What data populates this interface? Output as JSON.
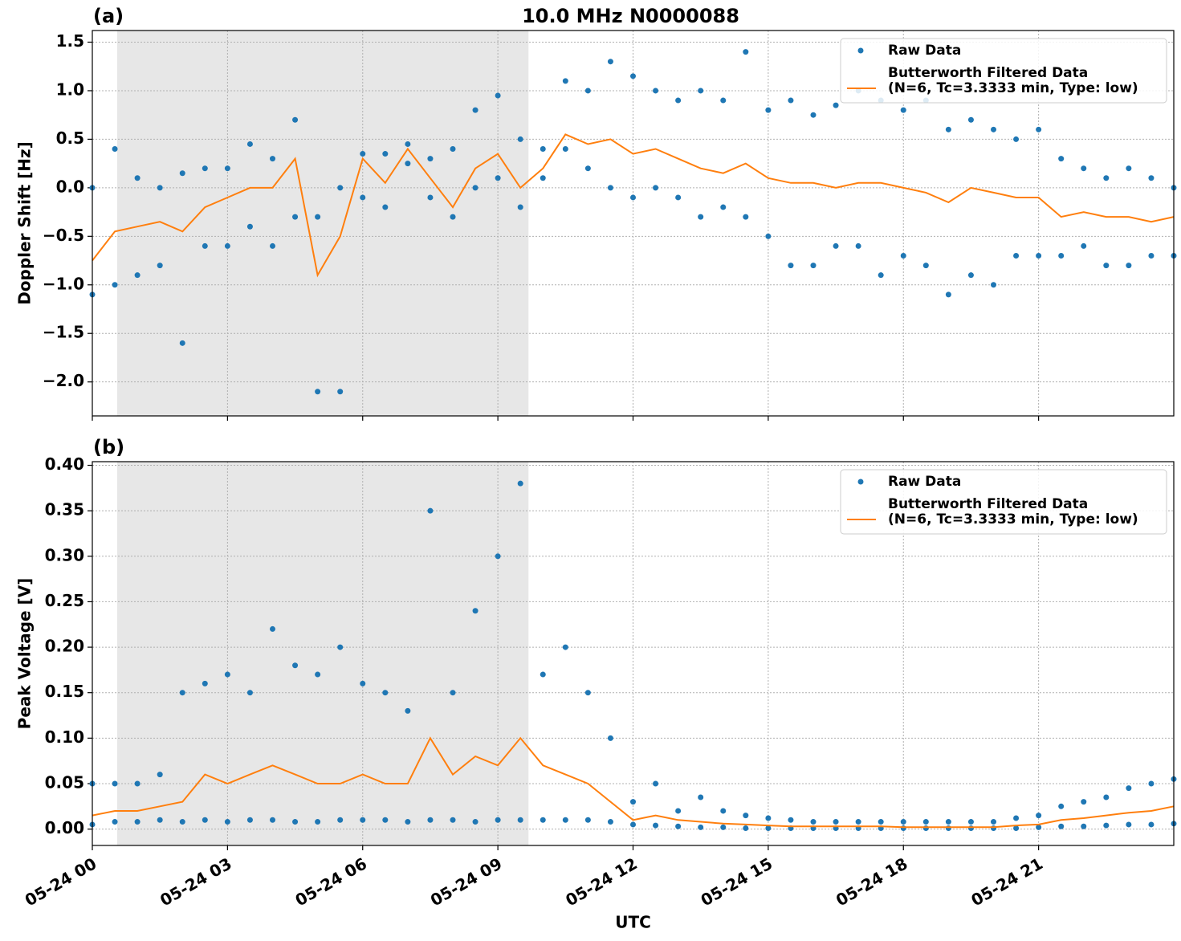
{
  "chart_data": [
    {
      "type": "scatter-line",
      "title": "10.0 MHz N0000088",
      "panel_label": "(a)",
      "ylabel": "Doppler Shift [Hz]",
      "xlim": [
        0,
        24
      ],
      "xticks": [
        0,
        3,
        6,
        9,
        12,
        15,
        18,
        21
      ],
      "ylim": [
        -2.35,
        1.62
      ],
      "yticks": [
        {
          "value": -2.0,
          "label": "−2.0"
        },
        {
          "value": -1.5,
          "label": "−1.5"
        },
        {
          "value": -1.0,
          "label": "−1.0"
        },
        {
          "value": -0.5,
          "label": "−0.5"
        },
        {
          "value": 0.0,
          "label": "0.0"
        },
        {
          "value": 0.5,
          "label": "0.5"
        },
        {
          "value": 1.0,
          "label": "1.0"
        },
        {
          "value": 1.5,
          "label": "1.5"
        }
      ],
      "grid": true,
      "shade": [
        0.55,
        9.68
      ],
      "legend": "upper right",
      "series": [
        {
          "name": "Raw Data",
          "color": "#1f77b4",
          "style": "points",
          "x": [
            0,
            0.5,
            1,
            1.5,
            2,
            2.5,
            3,
            3.5,
            4,
            4.5,
            5,
            5.5,
            6,
            6.5,
            7,
            7.5,
            8,
            8.5,
            9,
            9.5,
            10,
            10.5,
            11,
            11.5,
            12,
            12.5,
            13,
            13.5,
            14,
            14.5,
            15,
            15.5,
            16,
            16.5,
            17,
            17.5,
            18,
            18.5,
            19,
            19.5,
            20,
            20.5,
            21,
            21.5,
            22,
            22.5,
            23,
            23.5,
            24,
            0,
            0.5,
            1,
            1.5,
            2,
            2.5,
            3,
            3.5,
            4,
            4.5,
            5,
            5.5,
            6,
            6.5,
            7,
            7.5,
            8,
            8.5,
            9,
            9.5,
            10,
            10.5,
            11,
            11.5,
            12,
            12.5,
            13,
            13.5,
            14,
            14.5,
            15,
            15.5,
            16,
            16.5,
            17,
            17.5,
            18,
            18.5,
            19,
            19.5,
            20,
            20.5,
            21,
            21.5,
            22,
            22.5,
            23,
            23.5,
            24
          ],
          "values": [
            0.0,
            0.4,
            0.1,
            0.0,
            0.15,
            0.2,
            0.2,
            0.45,
            0.3,
            0.7,
            -0.3,
            0.0,
            0.35,
            0.35,
            0.45,
            0.3,
            0.4,
            0.8,
            0.95,
            0.5,
            0.4,
            1.1,
            1.0,
            1.3,
            1.15,
            1.0,
            0.9,
            1.0,
            0.9,
            1.4,
            0.8,
            0.9,
            0.75,
            0.85,
            1.0,
            0.9,
            0.8,
            0.9,
            0.6,
            0.7,
            0.6,
            0.5,
            0.6,
            0.3,
            0.2,
            0.1,
            0.2,
            0.1,
            0.0,
            -1.1,
            -1.0,
            -0.9,
            -0.8,
            -1.6,
            -0.6,
            -0.6,
            -0.4,
            -0.6,
            -0.3,
            -2.1,
            -2.1,
            -0.1,
            -0.2,
            0.25,
            -0.1,
            -0.3,
            0.0,
            0.1,
            -0.2,
            0.1,
            0.4,
            0.2,
            0.0,
            -0.1,
            0.0,
            -0.1,
            -0.3,
            -0.2,
            -0.3,
            -0.5,
            -0.8,
            -0.8,
            -0.6,
            -0.6,
            -0.9,
            -0.7,
            -0.8,
            -1.1,
            -0.9,
            -1.0,
            -0.7,
            -0.7,
            -0.7,
            -0.6,
            -0.8,
            -0.8,
            -0.7,
            -0.7
          ]
        },
        {
          "name": "Butterworth Filtered Data\n(N=6, Tc=3.3333 min, Type: low)",
          "color": "#ff7f0e",
          "style": "line",
          "x": [
            0,
            0.5,
            1,
            1.5,
            2,
            2.5,
            3,
            3.5,
            4,
            4.5,
            5,
            5.5,
            6,
            6.5,
            7,
            7.5,
            8,
            8.5,
            9,
            9.5,
            10,
            10.5,
            11,
            11.5,
            12,
            12.5,
            13,
            13.5,
            14,
            14.5,
            15,
            15.5,
            16,
            16.5,
            17,
            17.5,
            18,
            18.5,
            19,
            19.5,
            20,
            20.5,
            21,
            21.5,
            22,
            22.5,
            23,
            23.5,
            24
          ],
          "values": [
            -0.75,
            -0.45,
            -0.4,
            -0.35,
            -0.45,
            -0.2,
            -0.1,
            0.0,
            0.0,
            0.3,
            -0.9,
            -0.5,
            0.3,
            0.05,
            0.4,
            0.1,
            -0.2,
            0.2,
            0.35,
            0.0,
            0.2,
            0.55,
            0.45,
            0.5,
            0.35,
            0.4,
            0.3,
            0.2,
            0.15,
            0.25,
            0.1,
            0.05,
            0.05,
            0.0,
            0.05,
            0.05,
            0.0,
            -0.05,
            -0.15,
            0.0,
            -0.05,
            -0.1,
            -0.1,
            -0.3,
            -0.25,
            -0.3,
            -0.3,
            -0.35,
            -0.3
          ]
        }
      ]
    },
    {
      "type": "scatter-line",
      "panel_label": "(b)",
      "ylabel": "Peak Voltage [V]",
      "xlabel": "UTC",
      "xlim": [
        0,
        24
      ],
      "xticks": [
        {
          "value": 0,
          "label": "05-24 00"
        },
        {
          "value": 3,
          "label": "05-24 03"
        },
        {
          "value": 6,
          "label": "05-24 06"
        },
        {
          "value": 9,
          "label": "05-24 09"
        },
        {
          "value": 12,
          "label": "05-24 12"
        },
        {
          "value": 15,
          "label": "05-24 15"
        },
        {
          "value": 18,
          "label": "05-24 18"
        },
        {
          "value": 21,
          "label": "05-24 21"
        }
      ],
      "ylim": [
        -0.018,
        0.404
      ],
      "yticks": [
        {
          "value": 0.0,
          "label": "0.00"
        },
        {
          "value": 0.05,
          "label": "0.05"
        },
        {
          "value": 0.1,
          "label": "0.10"
        },
        {
          "value": 0.15,
          "label": "0.15"
        },
        {
          "value": 0.2,
          "label": "0.20"
        },
        {
          "value": 0.25,
          "label": "0.25"
        },
        {
          "value": 0.3,
          "label": "0.30"
        },
        {
          "value": 0.35,
          "label": "0.35"
        },
        {
          "value": 0.4,
          "label": "0.40"
        }
      ],
      "grid": true,
      "shade": [
        0.55,
        9.68
      ],
      "legend": "upper right",
      "series": [
        {
          "name": "Raw Data",
          "color": "#1f77b4",
          "style": "points",
          "x": [
            0,
            0.5,
            1,
            1.5,
            2,
            2.5,
            3,
            3.5,
            4,
            4.5,
            5,
            5.5,
            6,
            6.5,
            7,
            7.5,
            8,
            8.5,
            9,
            9.5,
            10,
            10.5,
            11,
            11.5,
            12,
            12.5,
            13,
            13.5,
            14,
            14.5,
            15,
            15.5,
            16,
            16.5,
            17,
            17.5,
            18,
            18.5,
            19,
            19.5,
            20,
            20.5,
            21,
            21.5,
            22,
            22.5,
            23,
            23.5,
            24,
            0,
            0.5,
            1,
            1.5,
            2,
            2.5,
            3,
            3.5,
            4,
            4.5,
            5,
            5.5,
            6,
            6.5,
            7,
            7.5,
            8,
            8.5,
            9,
            9.5,
            10,
            10.5,
            11,
            11.5,
            12,
            12.5,
            13,
            13.5,
            14,
            14.5,
            15,
            15.5,
            16,
            16.5,
            17,
            17.5,
            18,
            18.5,
            19,
            19.5,
            20,
            20.5,
            21,
            21.5,
            22,
            22.5,
            23,
            23.5,
            24
          ],
          "values": [
            0.05,
            0.05,
            0.05,
            0.06,
            0.15,
            0.16,
            0.17,
            0.15,
            0.22,
            0.18,
            0.17,
            0.2,
            0.16,
            0.15,
            0.13,
            0.35,
            0.15,
            0.24,
            0.3,
            0.38,
            0.17,
            0.2,
            0.15,
            0.1,
            0.03,
            0.05,
            0.02,
            0.035,
            0.02,
            0.015,
            0.012,
            0.01,
            0.008,
            0.008,
            0.008,
            0.008,
            0.008,
            0.008,
            0.008,
            0.008,
            0.008,
            0.012,
            0.015,
            0.025,
            0.03,
            0.035,
            0.045,
            0.05,
            0.055,
            0.005,
            0.008,
            0.008,
            0.01,
            0.008,
            0.01,
            0.008,
            0.01,
            0.01,
            0.008,
            0.008,
            0.01,
            0.01,
            0.01,
            0.008,
            0.01,
            0.01,
            0.008,
            0.01,
            0.01,
            0.01,
            0.01,
            0.01,
            0.008,
            0.005,
            0.004,
            0.003,
            0.002,
            0.002,
            0.001,
            0.001,
            0.001,
            0.001,
            0.001,
            0.001,
            0.001,
            0.001,
            0.001,
            0.001,
            0.001,
            0.001,
            0.001,
            0.002,
            0.003,
            0.003,
            0.004,
            0.005,
            0.005,
            0.006
          ]
        },
        {
          "name": "Butterworth Filtered Data\n(N=6, Tc=3.3333 min, Type: low)",
          "color": "#ff7f0e",
          "style": "line",
          "x": [
            0,
            0.5,
            1,
            1.5,
            2,
            2.5,
            3,
            3.5,
            4,
            4.5,
            5,
            5.5,
            6,
            6.5,
            7,
            7.5,
            8,
            8.5,
            9,
            9.5,
            10,
            10.5,
            11,
            11.5,
            12,
            12.5,
            13,
            13.5,
            14,
            14.5,
            15,
            15.5,
            16,
            16.5,
            17,
            17.5,
            18,
            18.5,
            19,
            19.5,
            20,
            20.5,
            21,
            21.5,
            22,
            22.5,
            23,
            23.5,
            24
          ],
          "values": [
            0.015,
            0.02,
            0.02,
            0.025,
            0.03,
            0.06,
            0.05,
            0.06,
            0.07,
            0.06,
            0.05,
            0.05,
            0.06,
            0.05,
            0.05,
            0.1,
            0.06,
            0.08,
            0.07,
            0.1,
            0.07,
            0.06,
            0.05,
            0.03,
            0.01,
            0.015,
            0.01,
            0.008,
            0.006,
            0.005,
            0.004,
            0.003,
            0.003,
            0.003,
            0.003,
            0.003,
            0.002,
            0.002,
            0.002,
            0.002,
            0.002,
            0.004,
            0.005,
            0.01,
            0.012,
            0.015,
            0.018,
            0.02,
            0.025
          ]
        }
      ]
    }
  ]
}
